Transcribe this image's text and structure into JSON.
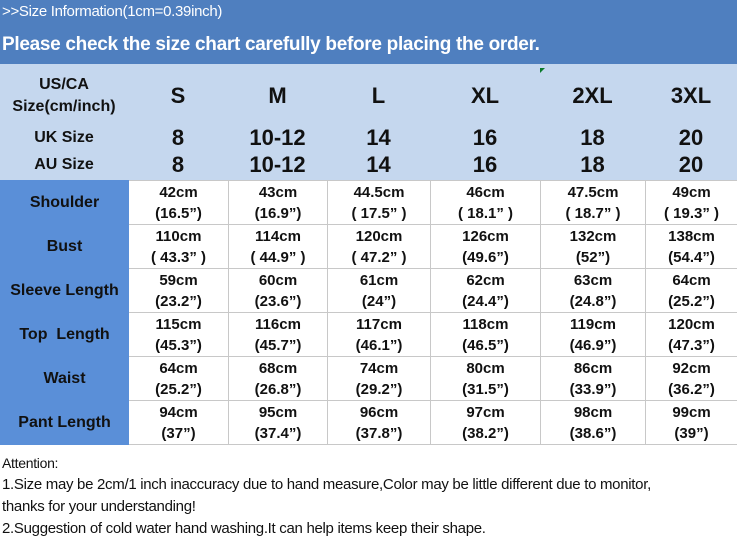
{
  "header": {
    "title": ">>Size Information(1cm=0.39inch)",
    "subtitle": "Please check the size chart carefully before placing the order."
  },
  "size_rows": [
    {
      "label": "US/CA Size(cm/inch)",
      "label_line1": "US/CA",
      "label_line2": "Size(cm/inch)",
      "values": [
        "S",
        "M",
        "L",
        "XL",
        "2XL",
        "3XL"
      ]
    },
    {
      "label": "UK Size",
      "values": [
        "8",
        "10-12",
        "14",
        "16",
        "18",
        "20"
      ]
    },
    {
      "label": "AU Size",
      "values": [
        "8",
        "10-12",
        "14",
        "16",
        "18",
        "20"
      ]
    }
  ],
  "measurements": [
    {
      "label": "Shoulder",
      "cm": [
        "42cm",
        "43cm",
        "44.5cm",
        "46cm",
        "47.5cm",
        "49cm"
      ],
      "inch": [
        "(16.5”)",
        "(16.9”)",
        "( 17.5” )",
        "( 18.1” )",
        "( 18.7” )",
        "( 19.3” )"
      ]
    },
    {
      "label": "Bust",
      "cm": [
        "110cm",
        "114cm",
        "120cm",
        "126cm",
        "132cm",
        "138cm"
      ],
      "inch": [
        "( 43.3” )",
        "( 44.9” )",
        "( 47.2” )",
        "(49.6”)",
        "(52”)",
        "(54.4”)"
      ]
    },
    {
      "label": "Sleeve Length",
      "cm": [
        "59cm",
        "60cm",
        "61cm",
        "62cm",
        "63cm",
        "64cm"
      ],
      "inch": [
        "(23.2”)",
        "(23.6”)",
        "(24”)",
        "(24.4”)",
        "(24.8”)",
        "(25.2”)"
      ]
    },
    {
      "label": "Top  Length",
      "cm": [
        "115cm",
        "116cm",
        "117cm",
        "118cm",
        "119cm",
        "120cm"
      ],
      "inch": [
        "(45.3”)",
        "(45.7”)",
        "(46.1”)",
        "(46.5”)",
        "(46.9”)",
        "(47.3”)"
      ]
    },
    {
      "label": "Waist",
      "cm": [
        "64cm",
        "68cm",
        "74cm",
        "80cm",
        "86cm",
        "92cm"
      ],
      "inch": [
        "(25.2”)",
        "(26.8”)",
        "(29.2”)",
        "(31.5”)",
        "(33.9”)",
        "(36.2”)"
      ]
    },
    {
      "label": "Pant Length",
      "cm": [
        "94cm",
        "95cm",
        "96cm",
        "97cm",
        "98cm",
        "99cm"
      ],
      "inch": [
        "(37”)",
        "(37.4”)",
        "(37.8”)",
        "(38.2”)",
        "(38.6”)",
        "(39”)"
      ]
    }
  ],
  "notes": {
    "heading": "Attention:",
    "line1": "1.Size may be 2cm/1 inch inaccuracy due to hand measure,Color may be little different due to monitor,",
    "line1b": "thanks for your understanding!",
    "line2": "2.Suggestion of cold water hand washing.It can help items keep their shape."
  },
  "colors": {
    "header_bg": "#4f7fbf",
    "size_bg": "#c5d7ee",
    "label_col": "#5a8fd8"
  }
}
